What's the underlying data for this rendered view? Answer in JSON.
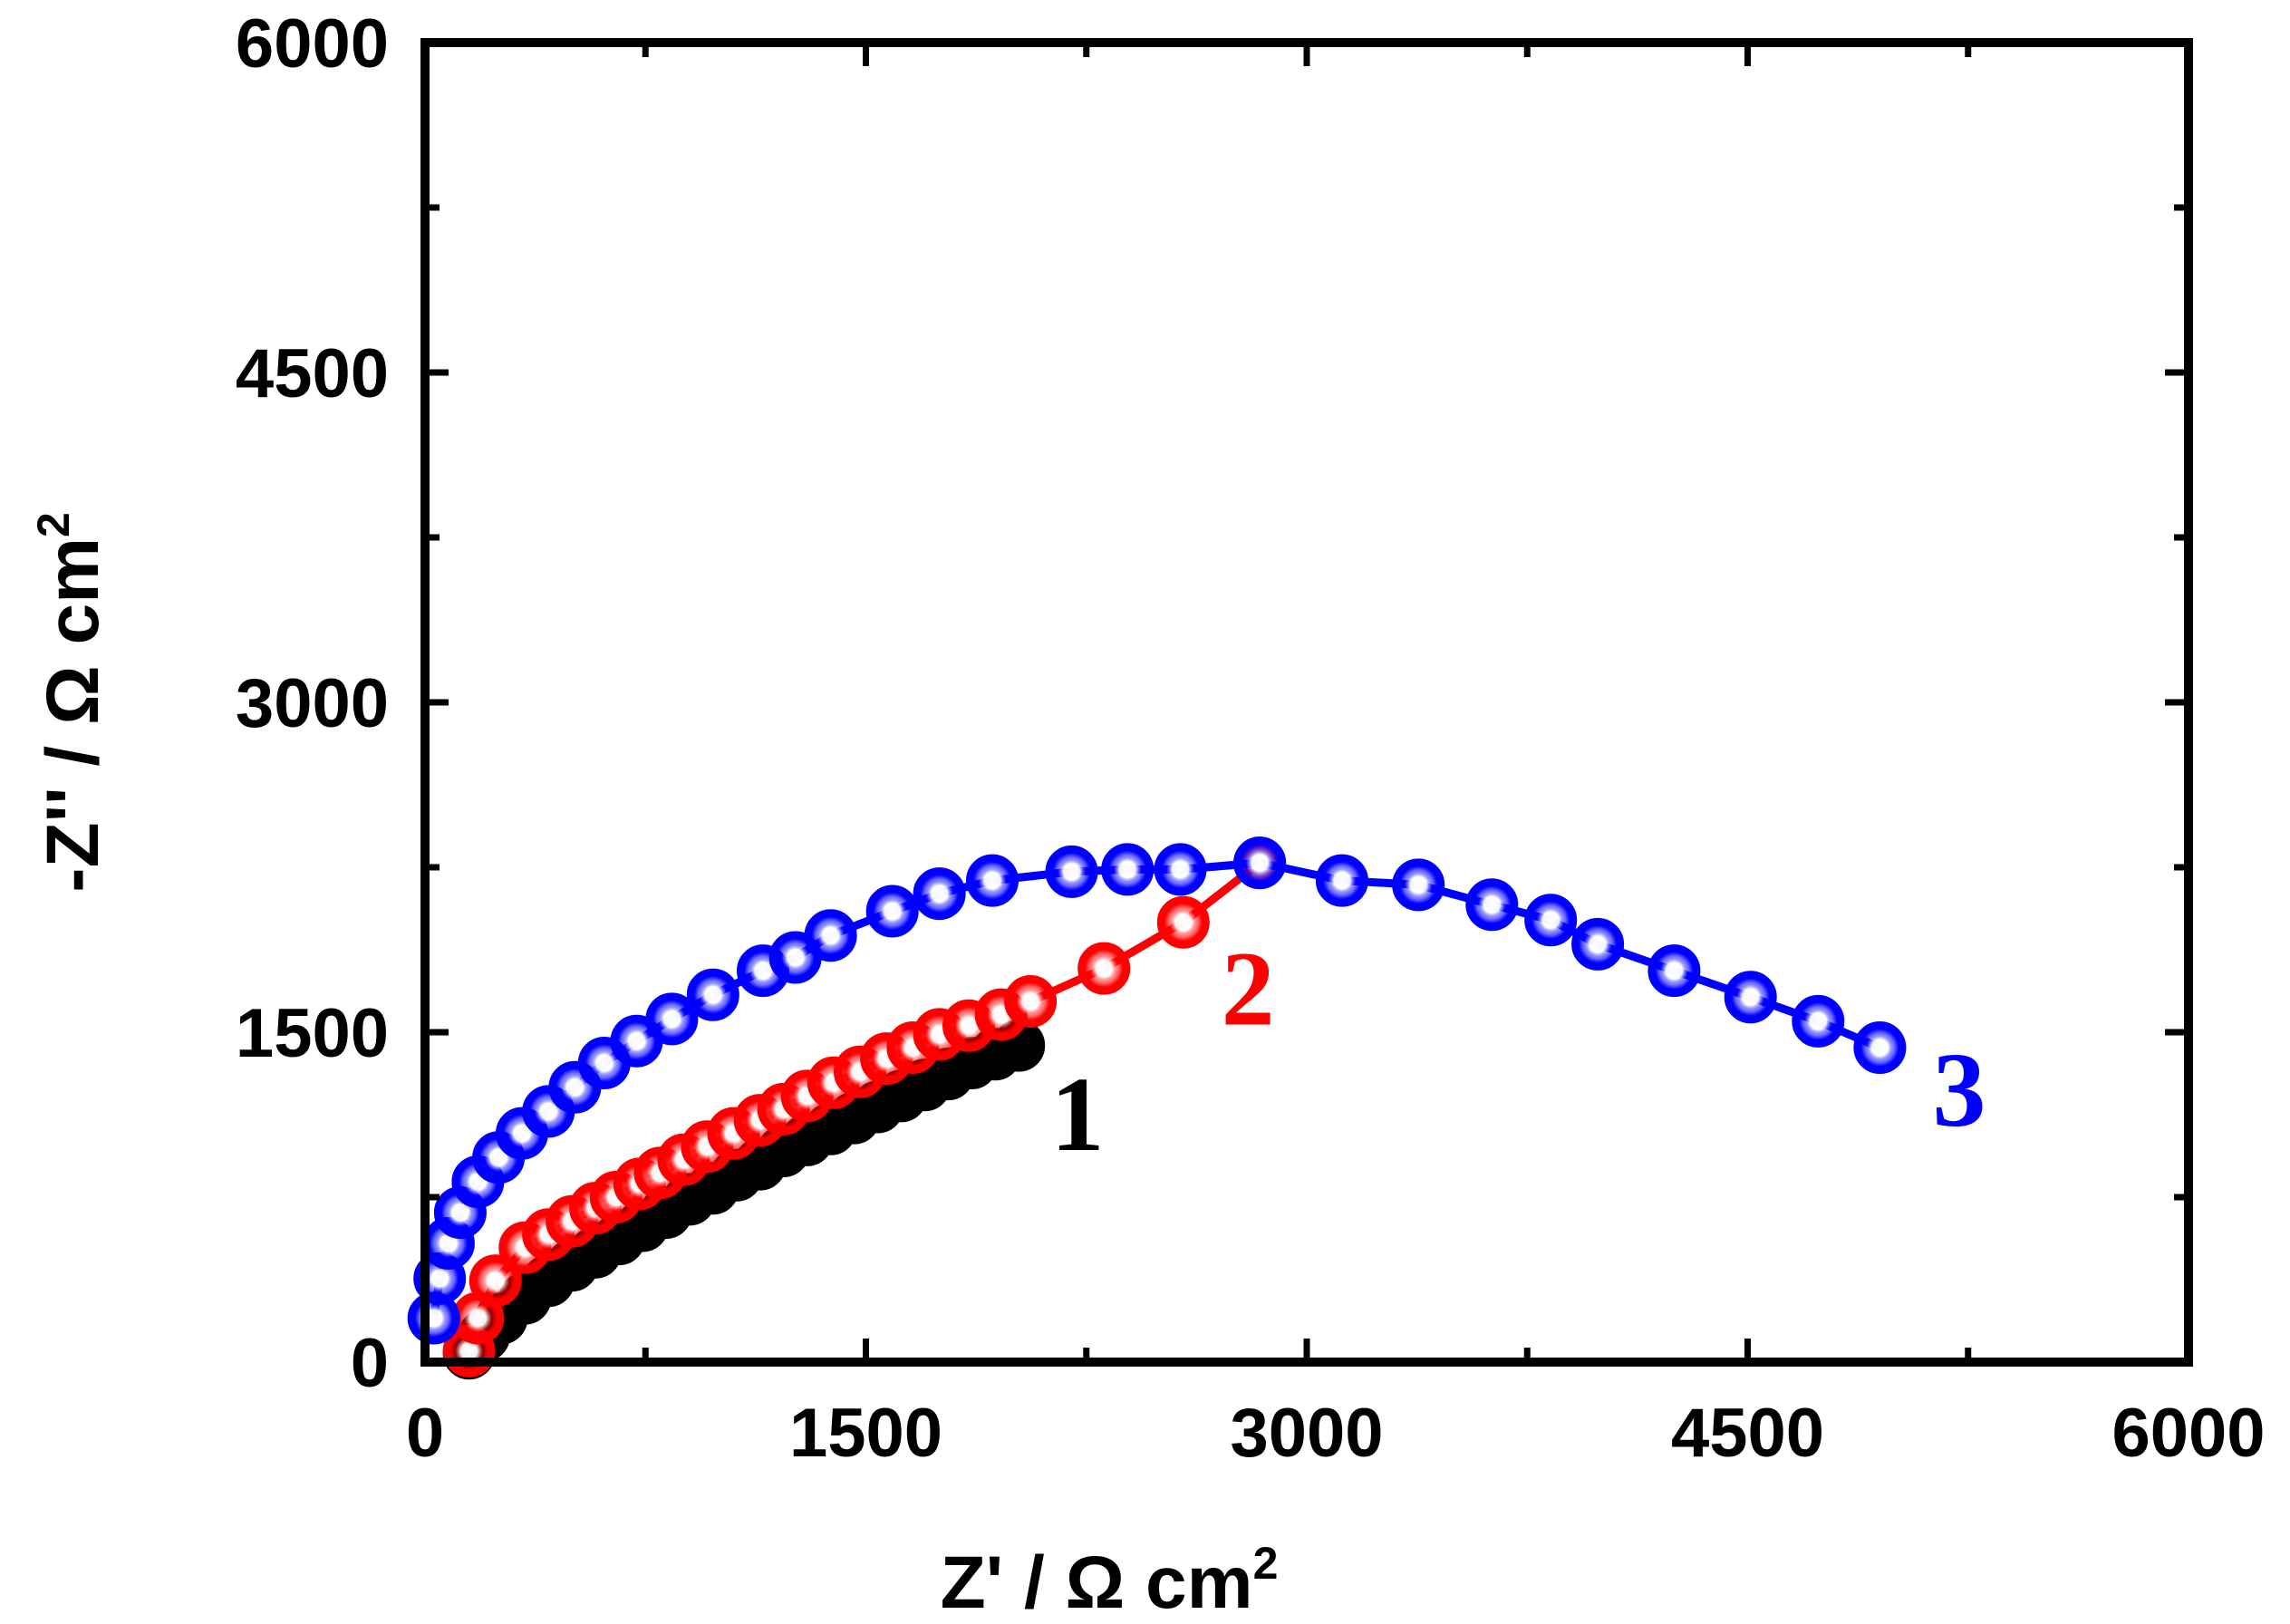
{
  "chart_data": {
    "type": "scatter",
    "title": "",
    "xlabel": "Z' / Ω cm",
    "xlabel_sup": "2",
    "ylabel": "-Z'' / Ω cm",
    "ylabel_sup": "2",
    "xlim": [
      0,
      6000
    ],
    "ylim": [
      0,
      6000
    ],
    "x_ticks": [
      0,
      1500,
      3000,
      4500,
      6000
    ],
    "y_ticks": [
      0,
      1500,
      3000,
      4500,
      6000
    ],
    "x_tick_labels": [
      "0",
      "1500",
      "3000",
      "4500",
      "6000"
    ],
    "y_tick_labels": [
      "0",
      "1500",
      "3000",
      "4500",
      "6000"
    ],
    "grid": false,
    "series": [
      {
        "name": "1",
        "label": "1",
        "color": "#000000",
        "label_pos": [
          2220,
          1130
        ],
        "points": [
          [
            150,
            40
          ],
          [
            200,
            120
          ],
          [
            260,
            200
          ],
          [
            340,
            290
          ],
          [
            420,
            370
          ],
          [
            500,
            440
          ],
          [
            580,
            500
          ],
          [
            660,
            560
          ],
          [
            740,
            620
          ],
          [
            820,
            680
          ],
          [
            900,
            740
          ],
          [
            980,
            790
          ],
          [
            1060,
            850
          ],
          [
            1140,
            900
          ],
          [
            1220,
            960
          ],
          [
            1300,
            1010
          ],
          [
            1380,
            1060
          ],
          [
            1460,
            1110
          ],
          [
            1540,
            1160
          ],
          [
            1620,
            1210
          ],
          [
            1700,
            1260
          ],
          [
            1780,
            1310
          ],
          [
            1860,
            1360
          ],
          [
            1940,
            1400
          ],
          [
            2020,
            1440
          ]
        ]
      },
      {
        "name": "2",
        "label": "2",
        "color": "#ff0000",
        "label_pos": [
          2800,
          1700
        ],
        "points": [
          [
            150,
            50
          ],
          [
            180,
            200
          ],
          [
            240,
            370
          ],
          [
            340,
            520
          ],
          [
            420,
            580
          ],
          [
            500,
            640
          ],
          [
            580,
            700
          ],
          [
            650,
            750
          ],
          [
            730,
            810
          ],
          [
            800,
            860
          ],
          [
            880,
            920
          ],
          [
            960,
            980
          ],
          [
            1050,
            1040
          ],
          [
            1140,
            1100
          ],
          [
            1220,
            1150
          ],
          [
            1300,
            1210
          ],
          [
            1390,
            1270
          ],
          [
            1480,
            1320
          ],
          [
            1570,
            1380
          ],
          [
            1660,
            1430
          ],
          [
            1750,
            1490
          ],
          [
            1850,
            1530
          ],
          [
            1960,
            1580
          ],
          [
            2060,
            1640
          ],
          [
            2310,
            1790
          ],
          [
            2580,
            2000
          ],
          [
            2840,
            2270
          ]
        ]
      },
      {
        "name": "3",
        "label": "3",
        "color": "#0000ff",
        "label_pos": [
          5220,
          1240
        ],
        "points": [
          [
            30,
            200
          ],
          [
            50,
            380
          ],
          [
            80,
            540
          ],
          [
            120,
            680
          ],
          [
            180,
            820
          ],
          [
            250,
            930
          ],
          [
            330,
            1040
          ],
          [
            420,
            1140
          ],
          [
            510,
            1250
          ],
          [
            610,
            1360
          ],
          [
            720,
            1460
          ],
          [
            840,
            1560
          ],
          [
            980,
            1670
          ],
          [
            1150,
            1780
          ],
          [
            1260,
            1840
          ],
          [
            1380,
            1940
          ],
          [
            1590,
            2050
          ],
          [
            1750,
            2130
          ],
          [
            1930,
            2190
          ],
          [
            2200,
            2230
          ],
          [
            2390,
            2240
          ],
          [
            2570,
            2240
          ],
          [
            2840,
            2270
          ],
          [
            3120,
            2190
          ],
          [
            3380,
            2170
          ],
          [
            3630,
            2080
          ],
          [
            3830,
            2010
          ],
          [
            3990,
            1900
          ],
          [
            4250,
            1780
          ],
          [
            4510,
            1660
          ],
          [
            4740,
            1550
          ],
          [
            4950,
            1430
          ]
        ]
      }
    ]
  }
}
